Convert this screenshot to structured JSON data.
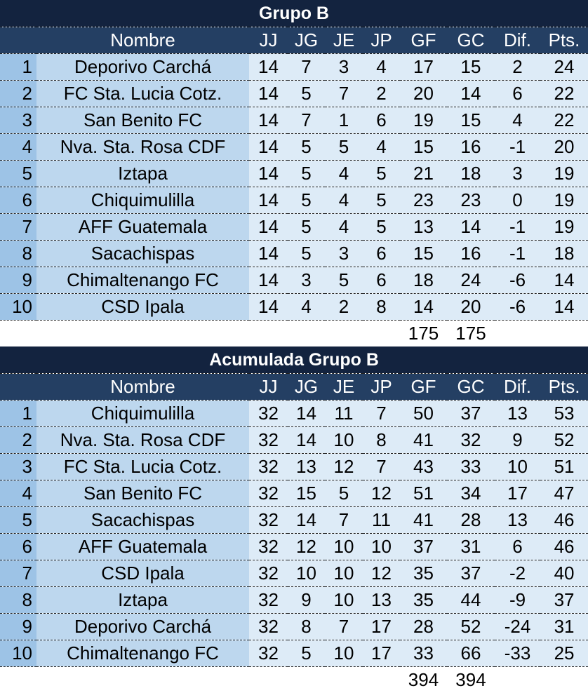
{
  "columns": [
    "",
    "Nombre",
    "JJ",
    "JG",
    "JE",
    "JP",
    "GF",
    "GC",
    "Dif.",
    "Pts."
  ],
  "tables": [
    {
      "title": "Grupo B",
      "rows": [
        [
          "1",
          "Deporivo Carchá",
          "14",
          "7",
          "3",
          "4",
          "17",
          "15",
          "2",
          "24"
        ],
        [
          "2",
          "FC Sta. Lucia Cotz.",
          "14",
          "5",
          "7",
          "2",
          "20",
          "14",
          "6",
          "22"
        ],
        [
          "3",
          "San Benito FC",
          "14",
          "7",
          "1",
          "6",
          "19",
          "15",
          "4",
          "22"
        ],
        [
          "4",
          "Nva. Sta. Rosa CDF",
          "14",
          "5",
          "5",
          "4",
          "15",
          "16",
          "-1",
          "20"
        ],
        [
          "5",
          "Iztapa",
          "14",
          "5",
          "4",
          "5",
          "21",
          "18",
          "3",
          "19"
        ],
        [
          "6",
          "Chiquimulilla",
          "14",
          "5",
          "4",
          "5",
          "23",
          "23",
          "0",
          "19"
        ],
        [
          "7",
          "AFF Guatemala",
          "14",
          "5",
          "4",
          "5",
          "13",
          "14",
          "-1",
          "19"
        ],
        [
          "8",
          "Sacachispas",
          "14",
          "5",
          "3",
          "6",
          "15",
          "16",
          "-1",
          "18"
        ],
        [
          "9",
          "Chimaltenango FC",
          "14",
          "3",
          "5",
          "6",
          "18",
          "24",
          "-6",
          "14"
        ],
        [
          "10",
          "CSD Ipala",
          "14",
          "4",
          "2",
          "8",
          "14",
          "20",
          "-6",
          "14"
        ]
      ],
      "totals": {
        "gf": "175",
        "gc": "175"
      }
    },
    {
      "title": "Acumulada Grupo B",
      "rows": [
        [
          "1",
          "Chiquimulilla",
          "32",
          "14",
          "11",
          "7",
          "50",
          "37",
          "13",
          "53"
        ],
        [
          "2",
          "Nva. Sta. Rosa CDF",
          "32",
          "14",
          "10",
          "8",
          "41",
          "32",
          "9",
          "52"
        ],
        [
          "3",
          "FC Sta. Lucia Cotz.",
          "32",
          "13",
          "12",
          "7",
          "43",
          "33",
          "10",
          "51"
        ],
        [
          "4",
          "San Benito FC",
          "32",
          "15",
          "5",
          "12",
          "51",
          "34",
          "17",
          "47"
        ],
        [
          "5",
          "Sacachispas",
          "32",
          "14",
          "7",
          "11",
          "41",
          "28",
          "13",
          "46"
        ],
        [
          "6",
          "AFF Guatemala",
          "32",
          "12",
          "10",
          "10",
          "37",
          "31",
          "6",
          "46"
        ],
        [
          "7",
          "CSD Ipala",
          "32",
          "10",
          "10",
          "12",
          "35",
          "37",
          "-2",
          "40"
        ],
        [
          "8",
          "Iztapa",
          "32",
          "9",
          "10",
          "13",
          "35",
          "44",
          "-9",
          "37"
        ],
        [
          "9",
          "Deporivo Carchá",
          "32",
          "8",
          "7",
          "17",
          "28",
          "52",
          "-24",
          "31"
        ],
        [
          "10",
          "Chimaltenango FC",
          "32",
          "5",
          "10",
          "17",
          "33",
          "66",
          "-33",
          "25"
        ]
      ],
      "totals": {
        "gf": "394",
        "gc": "394"
      }
    }
  ],
  "colors": {
    "title_bg": "#13233f",
    "header_bg": "#243f63",
    "rank_bg": "#9dc3e6",
    "name_bg": "#bdd7ee",
    "data_bg": "#ddebf7"
  }
}
